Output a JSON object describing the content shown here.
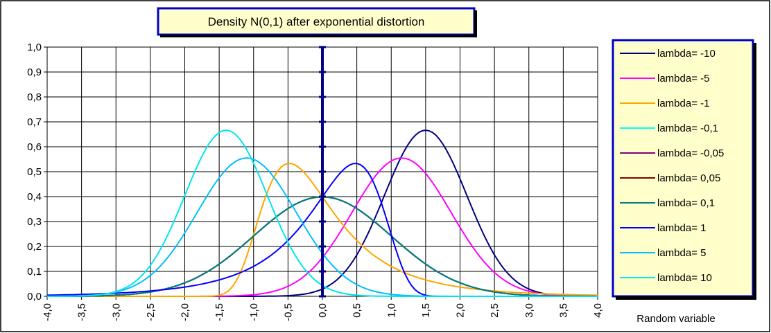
{
  "chart_data": {
    "type": "line",
    "title": "Density N(0,1) after exponential distortion",
    "xlabel": "Random variable",
    "ylabel": "",
    "xlim": [
      -4.0,
      4.0
    ],
    "ylim": [
      0.0,
      1.0
    ],
    "x_ticks": [
      "-4,0",
      "-3,5",
      "-3,0",
      "-2,5",
      "-2,0",
      "-1,5",
      "-1,0",
      "-0,5",
      "0,0",
      "0,5",
      "1,0",
      "1,5",
      "2,0",
      "2,5",
      "3,0",
      "3,5",
      "4,0"
    ],
    "y_ticks": [
      "0,0",
      "0,1",
      "0,2",
      "0,3",
      "0,4",
      "0,5",
      "0,6",
      "0,7",
      "0,8",
      "0,9",
      "1,0"
    ],
    "grid": true,
    "legend_position": "right",
    "colors": {
      "background": "#ffffff",
      "grid": "#000000",
      "title_box_fill": "#ffffcc",
      "title_box_border": "#0000cc",
      "legend_fill": "#ffffcc",
      "legend_border": "#0000cc",
      "zero_axis": "#000080"
    },
    "series": [
      {
        "name": "lambda= -10",
        "color": "#000080",
        "lambda": -10
      },
      {
        "name": "lambda= -5",
        "color": "#ff00ff",
        "lambda": -5
      },
      {
        "name": "lambda= -1",
        "color": "#ffa500",
        "lambda": -1
      },
      {
        "name": "lambda= -0,1",
        "color": "#00ffff",
        "lambda": -0.1
      },
      {
        "name": "lambda= -0,05",
        "color": "#800080",
        "lambda": -0.05
      },
      {
        "name": "lambda= 0,05",
        "color": "#800000",
        "lambda": 0.05
      },
      {
        "name": "lambda= 0,1",
        "color": "#008080",
        "lambda": 0.1
      },
      {
        "name": "lambda= 1",
        "color": "#0000ff",
        "lambda": 1
      },
      {
        "name": "lambda= 5",
        "color": "#00bfff",
        "lambda": 5
      },
      {
        "name": "lambda= 10",
        "color": "#00e5ee",
        "lambda": 10
      }
    ]
  }
}
